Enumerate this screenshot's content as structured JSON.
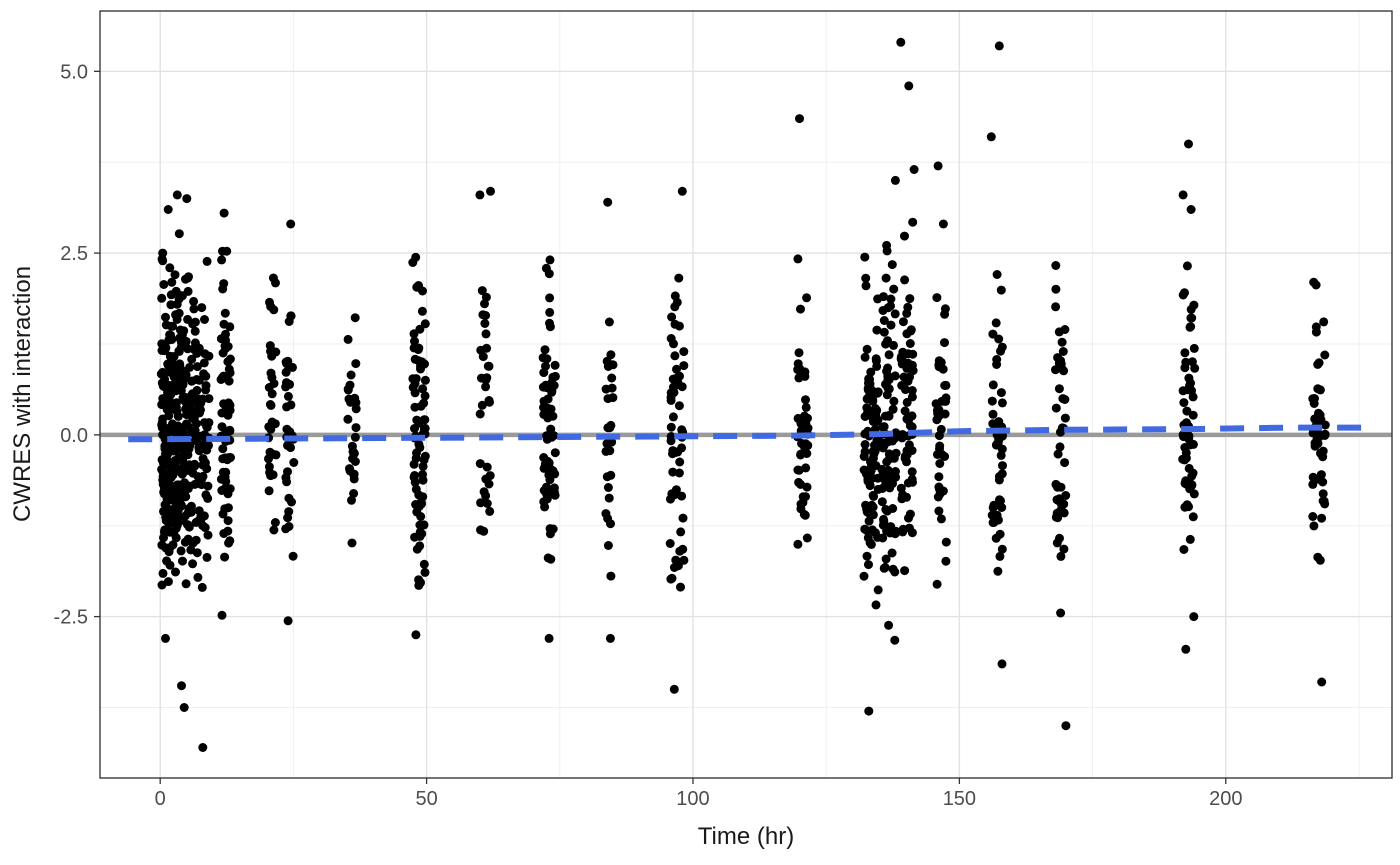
{
  "chart_data": {
    "type": "scatter",
    "title": "",
    "xlabel": "Time (hr)",
    "ylabel": "CWRES with interaction",
    "x_ticks": [
      0,
      50,
      100,
      150,
      200
    ],
    "x_tick_labels": [
      "0",
      "50",
      "100",
      "150",
      "200"
    ],
    "y_ticks": [
      -2.5,
      0.0,
      2.5,
      5.0
    ],
    "y_tick_labels": [
      "-2.5",
      "0.0",
      "2.5",
      "5.0"
    ],
    "x_minor_ticks": [
      25,
      75,
      125,
      175,
      225
    ],
    "y_minor_ticks": [
      -3.75,
      -1.25,
      1.25,
      3.75
    ],
    "xlim": [
      -11.3,
      231.2
    ],
    "ylim": [
      -4.72,
      5.83
    ],
    "grid": true,
    "legend": "none",
    "colors": {
      "point": "#000000",
      "reference_line": "#9a9a9a",
      "smoother": "#4169E1",
      "grid_major": "#e2e2e2",
      "grid_minor": "#efefef",
      "panel_border": "#2b2b2b",
      "panel_bg": "#ffffff",
      "tick": "#333333"
    },
    "point_style": {
      "radius": 4.5,
      "opacity": 1
    },
    "reference_line": {
      "y": 0,
      "width": 4.5,
      "style": "solid"
    },
    "smoother": {
      "style": "dashed",
      "width": 6,
      "dash": "24 15",
      "points": [
        [
          -6,
          -0.06
        ],
        [
          0,
          -0.06
        ],
        [
          25,
          -0.05
        ],
        [
          50,
          -0.04
        ],
        [
          75,
          -0.03
        ],
        [
          100,
          -0.02
        ],
        [
          120,
          -0.01
        ],
        [
          135,
          0.01
        ],
        [
          150,
          0.05
        ],
        [
          170,
          0.07
        ],
        [
          195,
          0.08
        ],
        [
          212,
          0.1
        ],
        [
          228,
          0.1
        ]
      ]
    },
    "seed": 42,
    "clusters": [
      {
        "t": 1.2,
        "n": 130,
        "jitter": 1.0,
        "mean": 0.1,
        "sd": 1.15,
        "ymin": -2.35,
        "ymax": 2.6
      },
      {
        "t": 3.0,
        "n": 115,
        "jitter": 1.2,
        "mean": 0.05,
        "sd": 1.15,
        "ymin": -2.45,
        "ymax": 3.0
      },
      {
        "t": 5.5,
        "n": 90,
        "jitter": 1.3,
        "mean": 0.0,
        "sd": 1.1,
        "ymin": -2.3,
        "ymax": 2.6
      },
      {
        "t": 8.0,
        "n": 65,
        "jitter": 1.2,
        "mean": 0.0,
        "sd": 1.05,
        "ymin": -2.2,
        "ymax": 2.5
      },
      {
        "t": 12.3,
        "n": 70,
        "jitter": 0.9,
        "mean": 0.0,
        "sd": 1.15,
        "ymin": -2.6,
        "ymax": 3.05
      },
      {
        "t": 21.0,
        "n": 34,
        "jitter": 0.8,
        "mean": 0.0,
        "sd": 1.1,
        "ymin": -2.2,
        "ymax": 2.25
      },
      {
        "t": 24.3,
        "n": 34,
        "jitter": 0.8,
        "mean": 0.0,
        "sd": 1.1,
        "ymin": -2.65,
        "ymax": 2.2
      },
      {
        "t": 36.0,
        "n": 30,
        "jitter": 0.8,
        "mean": 0.1,
        "sd": 0.95,
        "ymin": -1.75,
        "ymax": 1.85
      },
      {
        "t": 48.6,
        "n": 78,
        "jitter": 1.2,
        "mean": 0.0,
        "sd": 1.1,
        "ymin": -2.35,
        "ymax": 2.5
      },
      {
        "t": 61.0,
        "n": 32,
        "jitter": 1.0,
        "mean": 0.0,
        "sd": 1.0,
        "ymin": -1.95,
        "ymax": 2.15
      },
      {
        "t": 73.0,
        "n": 68,
        "jitter": 1.2,
        "mean": 0.0,
        "sd": 1.1,
        "ymin": -2.15,
        "ymax": 2.55
      },
      {
        "t": 84.3,
        "n": 26,
        "jitter": 0.7,
        "mean": -0.1,
        "sd": 1.15,
        "ymin": -2.1,
        "ymax": 1.85
      },
      {
        "t": 97.0,
        "n": 58,
        "jitter": 1.3,
        "mean": -0.1,
        "sd": 1.2,
        "ymin": -2.6,
        "ymax": 2.3
      },
      {
        "t": 120.6,
        "n": 46,
        "jitter": 1.0,
        "mean": 0.0,
        "sd": 1.15,
        "ymin": -2.1,
        "ymax": 2.65
      },
      {
        "t": 133.5,
        "n": 95,
        "jitter": 1.4,
        "mean": 0.0,
        "sd": 1.15,
        "ymin": -2.5,
        "ymax": 3.0
      },
      {
        "t": 136.8,
        "n": 95,
        "jitter": 1.4,
        "mean": -0.1,
        "sd": 1.2,
        "ymin": -2.9,
        "ymax": 2.85
      },
      {
        "t": 140.2,
        "n": 62,
        "jitter": 1.2,
        "mean": 0.1,
        "sd": 1.2,
        "ymin": -2.4,
        "ymax": 3.2
      },
      {
        "t": 146.6,
        "n": 40,
        "jitter": 1.0,
        "mean": 0.1,
        "sd": 1.2,
        "ymin": -2.2,
        "ymax": 2.9
      },
      {
        "t": 157.0,
        "n": 46,
        "jitter": 1.1,
        "mean": 0.0,
        "sd": 1.1,
        "ymin": -2.0,
        "ymax": 2.3
      },
      {
        "t": 169.0,
        "n": 46,
        "jitter": 1.0,
        "mean": -0.1,
        "sd": 1.15,
        "ymin": -2.4,
        "ymax": 2.35
      },
      {
        "t": 193.0,
        "n": 58,
        "jitter": 1.2,
        "mean": 0.0,
        "sd": 1.2,
        "ymin": -2.2,
        "ymax": 2.45
      },
      {
        "t": 217.5,
        "n": 46,
        "jitter": 1.2,
        "mean": 0.0,
        "sd": 1.0,
        "ymin": -1.9,
        "ymax": 2.1
      }
    ],
    "outliers": [
      {
        "t": 1.0,
        "y": -2.8
      },
      {
        "t": 4.0,
        "y": -3.45
      },
      {
        "t": 4.5,
        "y": -3.75
      },
      {
        "t": 8.0,
        "y": -4.3
      },
      {
        "t": 1.5,
        "y": 3.1
      },
      {
        "t": 3.2,
        "y": 3.3
      },
      {
        "t": 5.0,
        "y": 3.25
      },
      {
        "t": 12.0,
        "y": 3.05
      },
      {
        "t": 24.5,
        "y": 2.9
      },
      {
        "t": 48.0,
        "y": -2.75
      },
      {
        "t": 60.0,
        "y": 3.3
      },
      {
        "t": 62.0,
        "y": 3.35
      },
      {
        "t": 73.0,
        "y": -2.8
      },
      {
        "t": 84.0,
        "y": 3.2
      },
      {
        "t": 84.5,
        "y": -2.8
      },
      {
        "t": 96.5,
        "y": -3.5
      },
      {
        "t": 98.0,
        "y": 3.35
      },
      {
        "t": 120.0,
        "y": 4.35
      },
      {
        "t": 133.0,
        "y": -3.8
      },
      {
        "t": 139.0,
        "y": 5.4
      },
      {
        "t": 140.5,
        "y": 4.8
      },
      {
        "t": 138.0,
        "y": 3.5
      },
      {
        "t": 141.5,
        "y": 3.65
      },
      {
        "t": 146.0,
        "y": 3.7
      },
      {
        "t": 147.0,
        "y": 2.9
      },
      {
        "t": 157.5,
        "y": 5.35
      },
      {
        "t": 156.0,
        "y": 4.1
      },
      {
        "t": 158.0,
        "y": -3.15
      },
      {
        "t": 170.0,
        "y": -4.0
      },
      {
        "t": 169.0,
        "y": -2.45
      },
      {
        "t": 193.0,
        "y": 4.0
      },
      {
        "t": 192.0,
        "y": 3.3
      },
      {
        "t": 193.5,
        "y": 3.1
      },
      {
        "t": 194.0,
        "y": -2.5
      },
      {
        "t": 192.5,
        "y": -2.95
      },
      {
        "t": 218.0,
        "y": -3.4
      },
      {
        "t": 216.5,
        "y": 2.1
      }
    ]
  }
}
